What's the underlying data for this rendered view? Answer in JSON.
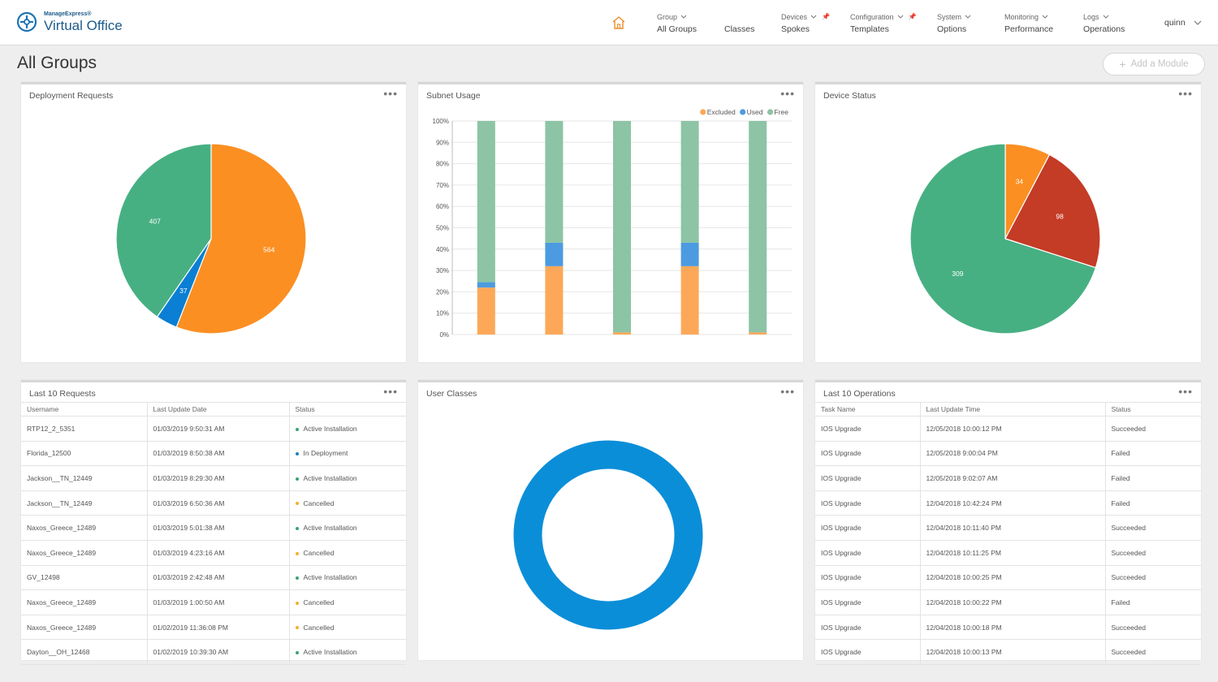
{
  "brand": {
    "super": "ManageExpress®",
    "name": "Virtual Office"
  },
  "nav": [
    {
      "top": "Group",
      "bottom": "All Groups",
      "chevron": true,
      "pin": false
    },
    {
      "top": "",
      "bottom": "Classes",
      "chevron": false,
      "pin": false
    },
    {
      "top": "Devices",
      "bottom": "Spokes",
      "chevron": true,
      "pin": true
    },
    {
      "top": "Configuration",
      "bottom": "Templates",
      "chevron": true,
      "pin": true
    },
    {
      "top": "System",
      "bottom": "Options",
      "chevron": true,
      "pin": false
    },
    {
      "top": "Monitoring",
      "bottom": "Performance",
      "chevron": true,
      "pin": false
    },
    {
      "top": "Logs",
      "bottom": "Operations",
      "chevron": true,
      "pin": false
    }
  ],
  "user": "quinn",
  "page_title": "All Groups",
  "add_module": "Add a Module",
  "colors": {
    "orange": "#fb8f22",
    "blue": "#0a7fd3",
    "green": "#47b083",
    "red": "#c43b26",
    "donut": "#0b8ed8",
    "accent": "#f08c2a"
  },
  "panels": {
    "deployment": {
      "title": "Deployment Requests"
    },
    "subnet": {
      "title": "Subnet Usage"
    },
    "device": {
      "title": "Device Status"
    },
    "requests": {
      "title": "Last 10 Requests"
    },
    "classes": {
      "title": "User Classes"
    },
    "operations": {
      "title": "Last 10 Operations"
    }
  },
  "chart_data": [
    {
      "type": "pie",
      "title": "Deployment Requests",
      "slices": [
        {
          "value": 564,
          "color": "#fb8f22"
        },
        {
          "value": 37,
          "color": "#0a7fd3"
        },
        {
          "value": 407,
          "color": "#47b083"
        }
      ]
    },
    {
      "type": "bar",
      "stacked": true,
      "title": "Subnet Usage",
      "categories": [
        "",
        "",
        "",
        "",
        ""
      ],
      "ylim": [
        0,
        100
      ],
      "ytick_suffix": "%",
      "yticks": [
        0,
        10,
        20,
        30,
        40,
        50,
        60,
        70,
        80,
        90,
        100
      ],
      "legend_position": "top-right",
      "series": [
        {
          "name": "Excluded",
          "color": "#fca858",
          "values": [
            22,
            32,
            1,
            32,
            1
          ]
        },
        {
          "name": "Used",
          "color": "#4c9be0",
          "values": [
            2.5,
            11,
            0,
            11,
            0
          ]
        },
        {
          "name": "Free",
          "color": "#8cc4a5",
          "values": [
            75.5,
            57,
            99,
            57,
            99
          ]
        }
      ]
    },
    {
      "type": "pie",
      "title": "Device Status",
      "slices": [
        {
          "value": 34,
          "color": "#fb8f22"
        },
        {
          "value": 98,
          "color": "#c43b26"
        },
        {
          "value": 309,
          "color": "#47b083"
        }
      ]
    },
    {
      "type": "pie",
      "donut": true,
      "title": "User Classes",
      "slices": [
        {
          "value": 1,
          "color": "#0b8ed8"
        }
      ]
    }
  ],
  "requests_table": {
    "headers": [
      "Username",
      "Last Update Date",
      "Status"
    ],
    "rows": [
      {
        "user": "RTP12_2_5351",
        "date": "01/03/2019 9:50:31 AM",
        "status": "Active Installation",
        "color": "#3aa373"
      },
      {
        "user": "Florida_12500",
        "date": "01/03/2019 8:50:38 AM",
        "status": "In Deployment",
        "color": "#1f80c8"
      },
      {
        "user": "Jackson__TN_12449",
        "date": "01/03/2019 8:29:30 AM",
        "status": "Active Installation",
        "color": "#3aa373"
      },
      {
        "user": "Jackson__TN_12449",
        "date": "01/03/2019 6:50:36 AM",
        "status": "Cancelled",
        "color": "#f2b12d"
      },
      {
        "user": "Naxos_Greece_12489",
        "date": "01/03/2019 5:01:38 AM",
        "status": "Active Installation",
        "color": "#3aa373"
      },
      {
        "user": "Naxos_Greece_12489",
        "date": "01/03/2019 4:23:16 AM",
        "status": "Cancelled",
        "color": "#f2b12d"
      },
      {
        "user": "GV_12498",
        "date": "01/03/2019 2:42:48 AM",
        "status": "Active Installation",
        "color": "#3aa373"
      },
      {
        "user": "Naxos_Greece_12489",
        "date": "01/03/2019 1:00:50 AM",
        "status": "Cancelled",
        "color": "#f2b12d"
      },
      {
        "user": "Naxos_Greece_12489",
        "date": "01/02/2019 11:36:08 PM",
        "status": "Cancelled",
        "color": "#f2b12d"
      },
      {
        "user": "Dayton__OH_12468",
        "date": "01/02/2019 10:39:30 AM",
        "status": "Active Installation",
        "color": "#3aa373"
      }
    ]
  },
  "operations_table": {
    "headers": [
      "Task Name",
      "Last Update Time",
      "Status"
    ],
    "rows": [
      {
        "task": "IOS Upgrade",
        "time": "12/05/2018 10:00:12 PM",
        "status": "Succeeded"
      },
      {
        "task": "IOS Upgrade",
        "time": "12/05/2018 9:00:04 PM",
        "status": "Failed"
      },
      {
        "task": "IOS Upgrade",
        "time": "12/05/2018 9:02:07 AM",
        "status": "Failed"
      },
      {
        "task": "IOS Upgrade",
        "time": "12/04/2018 10:42:24 PM",
        "status": "Failed"
      },
      {
        "task": "IOS Upgrade",
        "time": "12/04/2018 10:11:40 PM",
        "status": "Succeeded"
      },
      {
        "task": "IOS Upgrade",
        "time": "12/04/2018 10:11:25 PM",
        "status": "Succeeded"
      },
      {
        "task": "IOS Upgrade",
        "time": "12/04/2018 10:00:25 PM",
        "status": "Succeeded"
      },
      {
        "task": "IOS Upgrade",
        "time": "12/04/2018 10:00:22 PM",
        "status": "Failed"
      },
      {
        "task": "IOS Upgrade",
        "time": "12/04/2018 10:00:18 PM",
        "status": "Succeeded"
      },
      {
        "task": "IOS Upgrade",
        "time": "12/04/2018 10:00:13 PM",
        "status": "Succeeded"
      }
    ]
  }
}
